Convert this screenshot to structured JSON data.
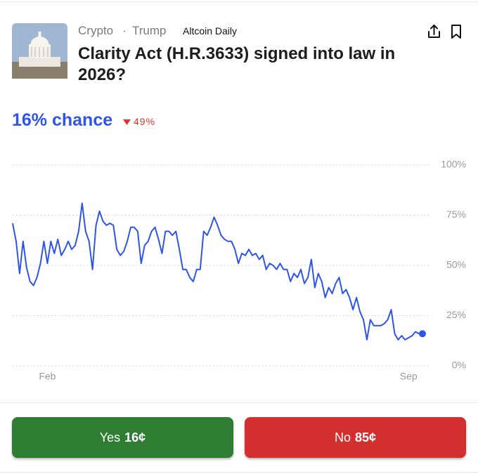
{
  "header": {
    "tags": [
      "Crypto",
      "·",
      "Trump"
    ],
    "source": "Altcoin Daily",
    "title": "Clarity Act (H.R.3633) signed into law in 2026?"
  },
  "headline": {
    "chance": "16% chance",
    "change": "49%"
  },
  "chart_data": {
    "type": "line",
    "color": "#2f54eb",
    "values": [
      71,
      62,
      46,
      62,
      49,
      42,
      40,
      44,
      51,
      62,
      51,
      62,
      56,
      63,
      55,
      58,
      62,
      58,
      60,
      67,
      81,
      67,
      62,
      48,
      70,
      77,
      72,
      70,
      71,
      70,
      58,
      55,
      57,
      62,
      69,
      69,
      67,
      51,
      60,
      62,
      67,
      69,
      63,
      56,
      67,
      67,
      65,
      67,
      58,
      48,
      48,
      44,
      42,
      48,
      48,
      67,
      65,
      69,
      74,
      70,
      65,
      63,
      62,
      62,
      58,
      51,
      56,
      55,
      58,
      55,
      56,
      53,
      55,
      48,
      51,
      50,
      48,
      51,
      48,
      48,
      42,
      46,
      44,
      48,
      41,
      44,
      53,
      39,
      46,
      42,
      34,
      39,
      36,
      41,
      44,
      36,
      38,
      34,
      28,
      34,
      27,
      23,
      13,
      23,
      20,
      20,
      20,
      21,
      23,
      28,
      16,
      13,
      15,
      13,
      14,
      15,
      17,
      16,
      16
    ],
    "ylim": [
      0,
      100
    ],
    "yticks": [
      {
        "value": 0,
        "label": "0%"
      },
      {
        "value": 25,
        "label": "25%"
      },
      {
        "value": 50,
        "label": "50%"
      },
      {
        "value": 75,
        "label": "75%"
      },
      {
        "value": 100,
        "label": "100%"
      }
    ],
    "xlim": [
      0,
      118
    ],
    "xticks": [
      {
        "value": 10,
        "label": "Feb"
      },
      {
        "value": 114,
        "label": "Sep"
      }
    ],
    "grid": true
  },
  "buttons": [
    {
      "label": "Yes",
      "price": "16¢",
      "color": "#2e7d32"
    },
    {
      "label": "No",
      "price": "85¢",
      "color": "#d32f2f"
    }
  ]
}
